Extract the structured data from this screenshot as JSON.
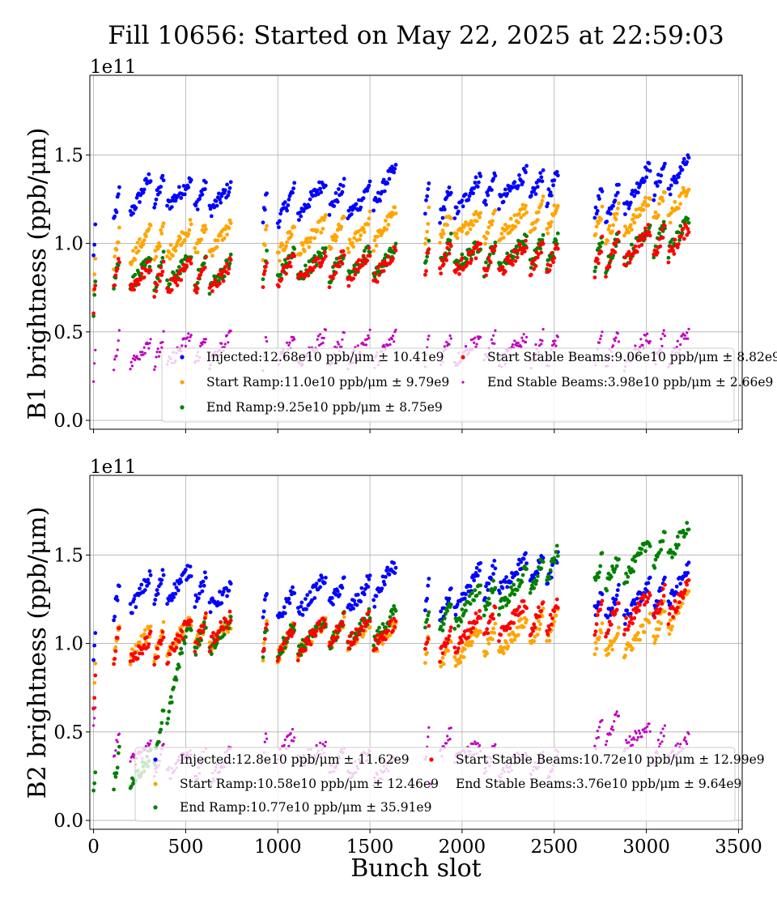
{
  "figure": {
    "title": "Fill 10656: Started on May 22, 2025 at 22:59:03",
    "xlabel": "Bunch slot"
  },
  "chart_data": [
    {
      "type": "scatter",
      "ylabel": "B1 brightness (ppb/μm)",
      "y_exponent_label": "1e11",
      "xlim": [
        -20,
        3520
      ],
      "ylim": [
        -0.05,
        1.95
      ],
      "xticks": [
        0,
        500,
        1000,
        1500,
        2000,
        2500,
        3000,
        3500
      ],
      "yticks": [
        0.0,
        0.5,
        1.0,
        1.5
      ],
      "yticklabels": [
        "0.0",
        "0.5",
        "1.0",
        "1.5"
      ],
      "grid": true,
      "legend_position": "lower-right",
      "series": [
        {
          "name": "Injected",
          "legend": "Injected:12.68e10 ppb/μm ± 10.41e9",
          "color": "#0000ff",
          "profile": [
            [
              0,
              1.0
            ],
            [
              120,
              1.2
            ],
            [
              300,
              1.3
            ],
            [
              500,
              1.28
            ],
            [
              700,
              1.25
            ],
            [
              1000,
              1.2
            ],
            [
              1250,
              1.28
            ],
            [
              1450,
              1.22
            ],
            [
              1600,
              1.35
            ],
            [
              1900,
              1.22
            ],
            [
              2100,
              1.3
            ],
            [
              2300,
              1.32
            ],
            [
              2500,
              1.32
            ],
            [
              2800,
              1.22
            ],
            [
              3000,
              1.35
            ],
            [
              3220,
              1.4
            ]
          ]
        },
        {
          "name": "Start Ramp",
          "legend": "Start Ramp:11.0e10 ppb/μm ± 9.79e9",
          "color": "#ffa500",
          "profile": [
            [
              0,
              0.78
            ],
            [
              120,
              0.98
            ],
            [
              300,
              1.0
            ],
            [
              500,
              1.02
            ],
            [
              700,
              1.03
            ],
            [
              1000,
              1.0
            ],
            [
              1250,
              1.05
            ],
            [
              1450,
              1.05
            ],
            [
              1600,
              1.1
            ],
            [
              1900,
              1.1
            ],
            [
              2100,
              1.1
            ],
            [
              2300,
              1.12
            ],
            [
              2500,
              1.17
            ],
            [
              2800,
              1.1
            ],
            [
              3000,
              1.18
            ],
            [
              3220,
              1.25
            ]
          ]
        },
        {
          "name": "End Ramp",
          "legend": "End Ramp:9.25e10 ppb/μm ± 8.75e9",
          "color": "#008000",
          "profile": [
            [
              0,
              0.7
            ],
            [
              120,
              0.85
            ],
            [
              300,
              0.83
            ],
            [
              500,
              0.85
            ],
            [
              700,
              0.82
            ],
            [
              1000,
              0.88
            ],
            [
              1250,
              0.88
            ],
            [
              1450,
              0.88
            ],
            [
              1600,
              0.9
            ],
            [
              1900,
              0.95
            ],
            [
              2100,
              0.92
            ],
            [
              2300,
              0.95
            ],
            [
              2500,
              0.95
            ],
            [
              2800,
              0.95
            ],
            [
              3000,
              1.02
            ],
            [
              3220,
              1.05
            ]
          ]
        },
        {
          "name": "Start Stable Beams",
          "legend": "Start Stable Beams:9.06e10 ppb/μm ± 8.82e9",
          "color": "#ff0000",
          "profile": [
            [
              0,
              0.7
            ],
            [
              120,
              0.85
            ],
            [
              300,
              0.8
            ],
            [
              500,
              0.82
            ],
            [
              700,
              0.8
            ],
            [
              1000,
              0.86
            ],
            [
              1250,
              0.86
            ],
            [
              1450,
              0.87
            ],
            [
              1600,
              0.88
            ],
            [
              1900,
              0.93
            ],
            [
              2100,
              0.9
            ],
            [
              2300,
              0.92
            ],
            [
              2500,
              0.92
            ],
            [
              2800,
              0.93
            ],
            [
              3000,
              1.0
            ],
            [
              3220,
              1.02
            ]
          ]
        },
        {
          "name": "End Stable Beams",
          "legend": "End Stable Beams:3.98e10 ppb/μm ± 2.66e9",
          "color": "#bf00bf",
          "profile": [
            [
              0,
              0.3
            ],
            [
              120,
              0.4
            ],
            [
              300,
              0.38
            ],
            [
              500,
              0.4
            ],
            [
              700,
              0.4
            ],
            [
              1000,
              0.4
            ],
            [
              1250,
              0.4
            ],
            [
              1450,
              0.4
            ],
            [
              1600,
              0.4
            ],
            [
              1900,
              0.41
            ],
            [
              2100,
              0.4
            ],
            [
              2300,
              0.4
            ],
            [
              2500,
              0.4
            ],
            [
              2800,
              0.4
            ],
            [
              3000,
              0.4
            ],
            [
              3220,
              0.42
            ]
          ]
        }
      ]
    },
    {
      "type": "scatter",
      "ylabel": "B2 brightness (ppb/μm)",
      "y_exponent_label": "1e11",
      "xlim": [
        -20,
        3520
      ],
      "ylim": [
        -0.05,
        1.95
      ],
      "xticks": [
        0,
        500,
        1000,
        1500,
        2000,
        2500,
        3000,
        3500
      ],
      "xticklabels": [
        "0",
        "500",
        "1000",
        "1500",
        "2000",
        "2500",
        "3000",
        "3500"
      ],
      "yticks": [
        0.0,
        0.5,
        1.0,
        1.5
      ],
      "yticklabels": [
        "0.0",
        "0.5",
        "1.0",
        "1.5"
      ],
      "grid": true,
      "legend_position": "lower-right",
      "series": [
        {
          "name": "Injected",
          "legend": "Injected:12.8e10 ppb/μm ± 11.62e9",
          "color": "#0000ff",
          "profile": [
            [
              0,
              0.95
            ],
            [
              120,
              1.25
            ],
            [
              300,
              1.3
            ],
            [
              500,
              1.35
            ],
            [
              700,
              1.25
            ],
            [
              1000,
              1.2
            ],
            [
              1250,
              1.3
            ],
            [
              1450,
              1.25
            ],
            [
              1600,
              1.38
            ],
            [
              1900,
              1.2
            ],
            [
              2100,
              1.35
            ],
            [
              2300,
              1.4
            ],
            [
              2500,
              1.42
            ],
            [
              2800,
              1.2
            ],
            [
              3000,
              1.25
            ],
            [
              3220,
              1.35
            ]
          ]
        },
        {
          "name": "Start Ramp",
          "legend": "Start Ramp:10.58e10 ppb/μm ± 12.46e9",
          "color": "#ffa500",
          "profile": [
            [
              0,
              0.75
            ],
            [
              120,
              1.0
            ],
            [
              300,
              1.0
            ],
            [
              500,
              1.05
            ],
            [
              700,
              1.05
            ],
            [
              1000,
              1.0
            ],
            [
              1250,
              1.05
            ],
            [
              1450,
              1.05
            ],
            [
              1600,
              1.05
            ],
            [
              1900,
              0.95
            ],
            [
              2100,
              1.0
            ],
            [
              2300,
              1.05
            ],
            [
              2500,
              1.1
            ],
            [
              2800,
              1.0
            ],
            [
              3000,
              1.05
            ],
            [
              3220,
              1.25
            ]
          ]
        },
        {
          "name": "End Ramp",
          "legend": "End Ramp:10.77e10 ppb/μm ± 35.91e9",
          "color": "#008000",
          "profile": [
            [
              0,
              0.22
            ],
            [
              120,
              0.3
            ],
            [
              300,
              0.27
            ],
            [
              500,
              1.02
            ],
            [
              700,
              1.05
            ],
            [
              1000,
              1.02
            ],
            [
              1250,
              1.05
            ],
            [
              1450,
              1.08
            ],
            [
              1600,
              1.1
            ],
            [
              1900,
              1.15
            ],
            [
              2100,
              1.25
            ],
            [
              2300,
              1.3
            ],
            [
              2500,
              1.45
            ],
            [
              2800,
              1.4
            ],
            [
              3000,
              1.5
            ],
            [
              3220,
              1.6
            ]
          ]
        },
        {
          "name": "Start Stable Beams",
          "legend": "Start Stable Beams:10.72e10 ppb/μm ± 12.99e9",
          "color": "#ff0000",
          "profile": [
            [
              0,
              0.7
            ],
            [
              120,
              1.0
            ],
            [
              300,
              0.95
            ],
            [
              500,
              1.05
            ],
            [
              700,
              1.08
            ],
            [
              1000,
              1.0
            ],
            [
              1250,
              1.05
            ],
            [
              1450,
              1.08
            ],
            [
              1600,
              1.05
            ],
            [
              1900,
              1.0
            ],
            [
              2100,
              1.1
            ],
            [
              2300,
              1.15
            ],
            [
              2500,
              1.15
            ],
            [
              2800,
              1.15
            ],
            [
              3000,
              1.2
            ],
            [
              3220,
              1.25
            ]
          ]
        },
        {
          "name": "End Stable Beams",
          "legend": "End Stable Beams:3.76e10 ppb/μm ± 9.64e9",
          "color": "#bf00bf",
          "profile": [
            [
              0,
              0.6
            ],
            [
              120,
              0.45
            ],
            [
              300,
              0.35
            ],
            [
              500,
              0.32
            ],
            [
              700,
              0.3
            ],
            [
              1000,
              0.45
            ],
            [
              1250,
              0.35
            ],
            [
              1450,
              0.32
            ],
            [
              1600,
              0.28
            ],
            [
              1900,
              0.45
            ],
            [
              2100,
              0.35
            ],
            [
              2300,
              0.32
            ],
            [
              2500,
              0.3
            ],
            [
              2800,
              0.55
            ],
            [
              3000,
              0.45
            ],
            [
              3220,
              0.4
            ]
          ]
        }
      ]
    }
  ]
}
